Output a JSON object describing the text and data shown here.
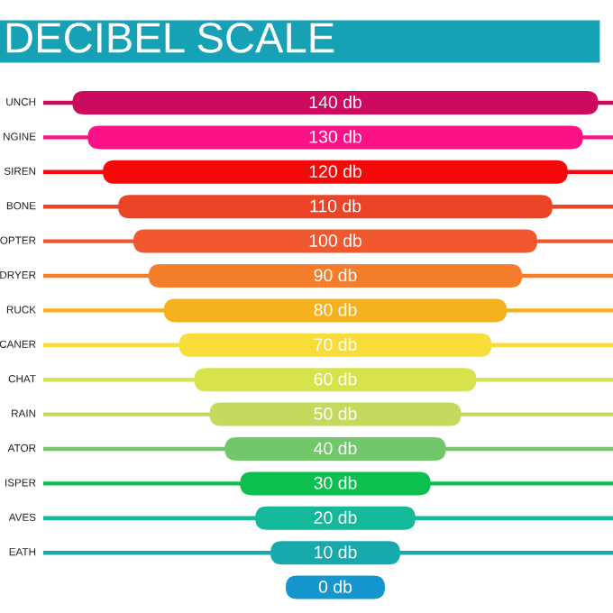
{
  "chart_data": {
    "type": "other",
    "title": "DECIBEL SCALE",
    "categories": [
      "UNCH",
      "NGINE",
      "SIREN",
      "BONE",
      "OPTER",
      "DRYER",
      "RUCK",
      "CANER",
      "CHAT",
      "RAIN",
      "ATOR",
      "ISPER",
      "AVES",
      "EATH",
      null
    ],
    "values": [
      140,
      130,
      120,
      110,
      100,
      90,
      80,
      70,
      60,
      50,
      40,
      30,
      20,
      10,
      0
    ],
    "value_labels": [
      "140 db",
      "130 db",
      "120 db",
      "110 db",
      "100 db",
      "90 db",
      "80 db",
      "70 db",
      "60 db",
      "50 db",
      "40 db",
      "30 db",
      "20 db",
      "10 db",
      "0 db"
    ],
    "colors": [
      "#cc0a5e",
      "#fb1287",
      "#f50a0a",
      "#ec4427",
      "#f2582f",
      "#f57e2e",
      "#f5b21e",
      "#f7dc3a",
      "#d7e34a",
      "#c3da5c",
      "#72c76b",
      "#0cbf4e",
      "#14b99a",
      "#18a9ad",
      "#1596cf"
    ]
  }
}
